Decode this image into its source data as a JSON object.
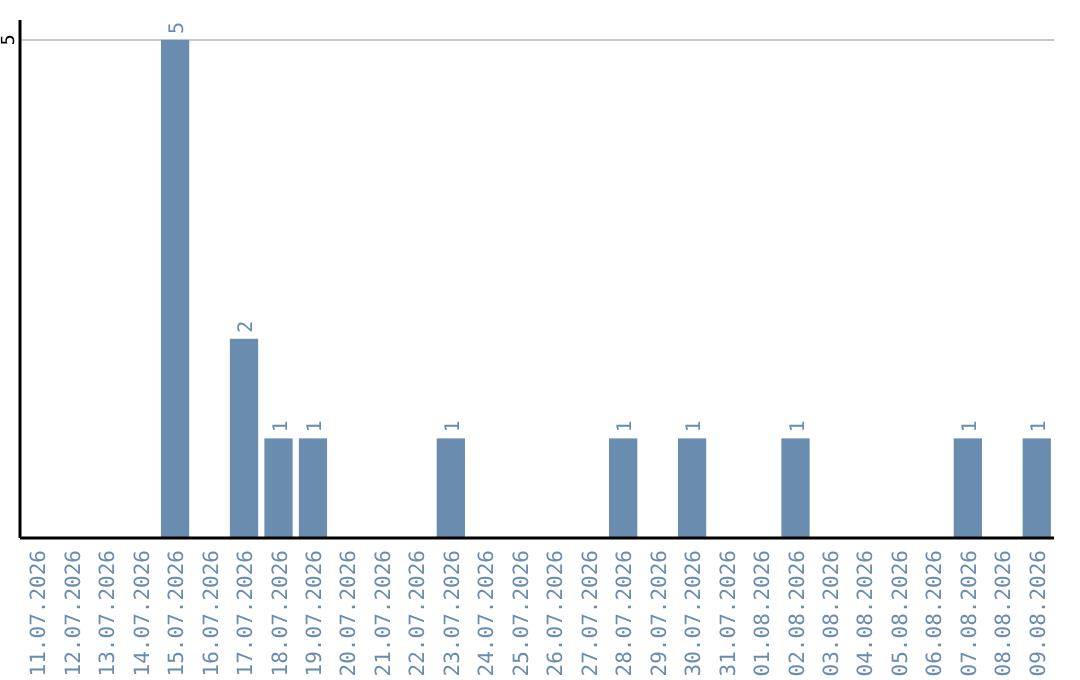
{
  "chart_data": {
    "type": "bar",
    "categories": [
      "11.07.2026",
      "12.07.2026",
      "13.07.2026",
      "14.07.2026",
      "15.07.2026",
      "16.07.2026",
      "17.07.2026",
      "18.07.2026",
      "19.07.2026",
      "20.07.2026",
      "21.07.2026",
      "22.07.2026",
      "23.07.2026",
      "24.07.2026",
      "25.07.2026",
      "26.07.2026",
      "27.07.2026",
      "28.07.2026",
      "29.07.2026",
      "30.07.2026",
      "31.07.2026",
      "01.08.2026",
      "02.08.2026",
      "03.08.2026",
      "04.08.2026",
      "05.08.2026",
      "06.08.2026",
      "07.08.2026",
      "08.08.2026",
      "09.08.2026"
    ],
    "values": [
      0,
      0,
      0,
      0,
      5,
      0,
      2,
      1,
      1,
      0,
      0,
      0,
      1,
      0,
      0,
      0,
      0,
      1,
      0,
      1,
      0,
      0,
      1,
      0,
      0,
      0,
      0,
      1,
      0,
      1
    ],
    "value_labels": [
      null,
      null,
      null,
      null,
      "5",
      null,
      "2",
      "1",
      "1",
      null,
      null,
      null,
      "1",
      null,
      null,
      null,
      null,
      "1",
      null,
      "1",
      null,
      null,
      "1",
      null,
      null,
      null,
      null,
      "1",
      null,
      "1"
    ],
    "color": "#6a8caf",
    "ylim": [
      0,
      5.2
    ],
    "yticks": [
      5
    ],
    "grid": "y"
  }
}
